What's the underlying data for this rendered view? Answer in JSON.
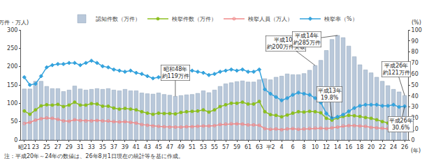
{
  "chart_data": {
    "type": "bar",
    "y_label": "(万件・万人)",
    "y2_label": "(%)",
    "x_label": "(年)",
    "note": "注：平成20年～24年の数値は、26年8月1日現在の統計等を基に作成。",
    "categories": [
      "昭21",
      null,
      "23",
      null,
      "25",
      null,
      "27",
      null,
      "29",
      null,
      "31",
      null,
      "33",
      null,
      "35",
      null,
      "37",
      null,
      "39",
      null,
      "41",
      null,
      "43",
      null,
      "45",
      null,
      "47",
      null,
      "49",
      null,
      "51",
      null,
      "53",
      null,
      "55",
      null,
      "57",
      null,
      "59",
      null,
      "61",
      null,
      "63",
      null,
      "平2",
      null,
      "4",
      null,
      "6",
      null,
      "8",
      null,
      "10",
      null,
      "12",
      null,
      "14",
      null,
      "16",
      null,
      "18",
      null,
      "20",
      null,
      "22",
      null,
      "24",
      null,
      "26"
    ],
    "series": [
      {
        "name": "認知件数（万件）",
        "type": "bar",
        "color": "#b9c8da",
        "values": [
          139,
          139,
          160,
          160,
          146,
          140,
          140,
          132,
          136,
          147,
          139,
          136,
          138,
          140,
          138,
          140,
          136,
          134,
          138,
          134,
          134,
          128,
          126,
          125,
          128,
          124,
          122,
          119,
          121,
          123,
          124,
          127,
          134,
          129,
          136,
          146,
          153,
          156,
          159,
          161,
          158,
          158,
          164,
          167,
          164,
          171,
          174,
          180,
          178,
          178,
          181,
          190,
          203,
          217,
          244,
          274,
          285,
          279,
          256,
          227,
          205,
          191,
          183,
          171,
          160,
          148,
          138,
          131,
          121
        ]
      },
      {
        "name": "検挙件数（万件）",
        "type": "line",
        "color": "#8cbf1f",
        "marker": "circle",
        "values": [
          79,
          70,
          82,
          93,
          96,
          95,
          97,
          91,
          95,
          103,
          95,
          95,
          99,
          98,
          92,
          92,
          87,
          84,
          86,
          84,
          82,
          77,
          73,
          70,
          73,
          72,
          72,
          71,
          75,
          77,
          78,
          79,
          82,
          76,
          82,
          91,
          96,
          100,
          100,
          103,
          98,
          98,
          105,
          77,
          69,
          67,
          63,
          68,
          73,
          77,
          76,
          78,
          77,
          74,
          59,
          54,
          60,
          64,
          67,
          66,
          64,
          61,
          59,
          55,
          50,
          46,
          44,
          39,
          37
        ]
      },
      {
        "name": "検挙人員（万人）",
        "type": "line",
        "color": "#f08a8a",
        "marker": "circle-open",
        "values": [
          45,
          48,
          54,
          58,
          60,
          59,
          56,
          52,
          51,
          55,
          53,
          52,
          52,
          53,
          52,
          52,
          50,
          49,
          50,
          48,
          46,
          42,
          40,
          38,
          37,
          36,
          35,
          35,
          35,
          36,
          36,
          37,
          38,
          38,
          39,
          42,
          43,
          44,
          44,
          43,
          41,
          41,
          40,
          31,
          29,
          30,
          28,
          30,
          31,
          29,
          30,
          31,
          32,
          32,
          31,
          33,
          35,
          38,
          39,
          39,
          38,
          37,
          34,
          33,
          32,
          31,
          29,
          26,
          25
        ]
      },
      {
        "name": "検挙率（%）",
        "type": "line",
        "color": "#35a3dd",
        "marker": "diamond",
        "axis": "y2",
        "values": [
          57,
          50,
          51,
          58,
          66,
          68,
          69,
          69,
          70,
          70,
          68,
          70,
          72,
          70,
          67,
          66,
          64,
          63,
          62,
          63,
          61,
          60,
          58,
          56,
          57,
          58,
          59,
          60,
          62,
          63,
          63,
          62,
          61,
          59,
          60,
          62,
          63,
          64,
          63,
          64,
          62,
          62,
          64,
          46,
          42,
          39,
          36,
          38,
          41,
          43,
          42,
          41,
          38,
          34,
          24,
          19.8,
          21,
          23,
          26,
          29,
          31,
          32,
          32,
          32,
          31,
          31,
          32,
          30,
          30.6
        ]
      }
    ],
    "ylim": [
      0,
      300
    ],
    "yticks": [
      0,
      50,
      100,
      150,
      200,
      250,
      300
    ],
    "y2lim": [
      0,
      100
    ],
    "y2ticks": [
      0,
      10,
      20,
      30,
      40,
      50,
      60,
      70,
      80,
      90,
      100
    ],
    "grid": false,
    "legend": "top",
    "annotations": [
      {
        "text": "昭和48年\n約119万件",
        "index": 27,
        "series": "認知件数（万件）"
      },
      {
        "text": "平成10年\n約200万件突破",
        "index": 52,
        "series": "認知件数（万件）"
      },
      {
        "text": "平成14年\n約285万件",
        "index": 56,
        "series": "認知件数（万件）"
      },
      {
        "text": "平成13年\n19.8%",
        "index": 55,
        "series": "検挙率（%）"
      },
      {
        "text": "平成26年\n約121万件",
        "index": 68,
        "series": "認知件数（万件）"
      },
      {
        "text": "平成26年\n30.6%",
        "index": 68,
        "series": "検挙率（%）"
      }
    ]
  }
}
